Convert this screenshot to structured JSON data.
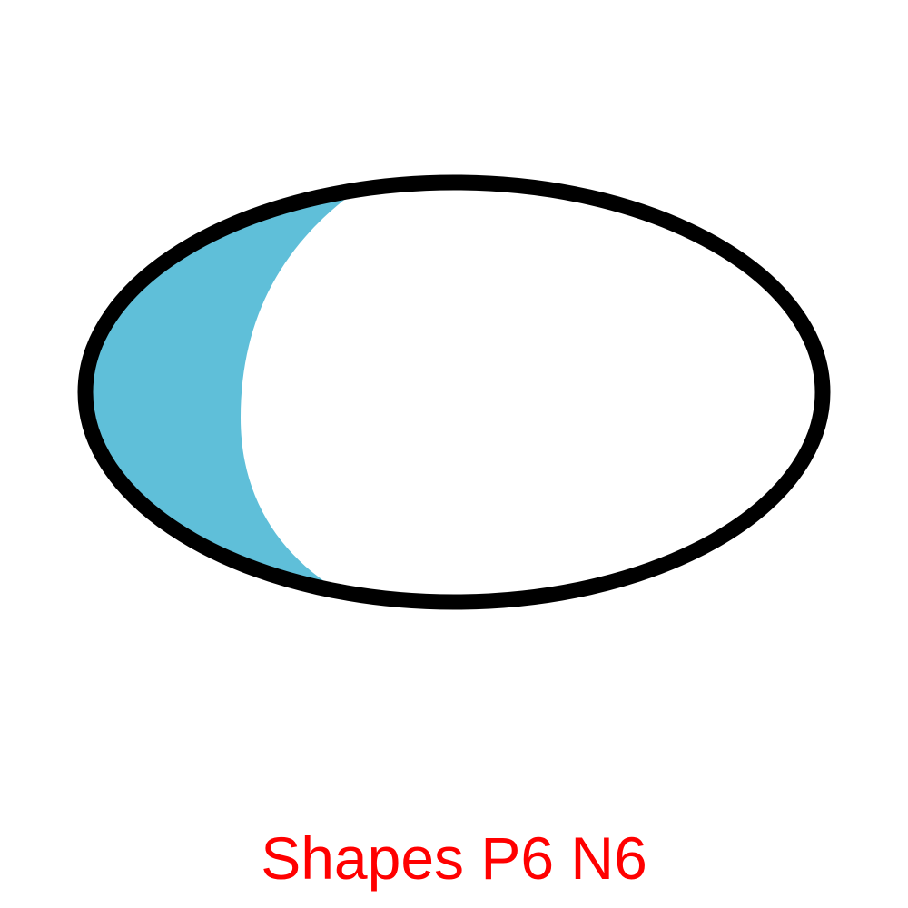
{
  "caption": "Shapes P6 N6",
  "colors": {
    "background": "#ffffff",
    "outline": "#000000",
    "shaded_region": "#5fbfd9",
    "caption": "#ff0000"
  }
}
